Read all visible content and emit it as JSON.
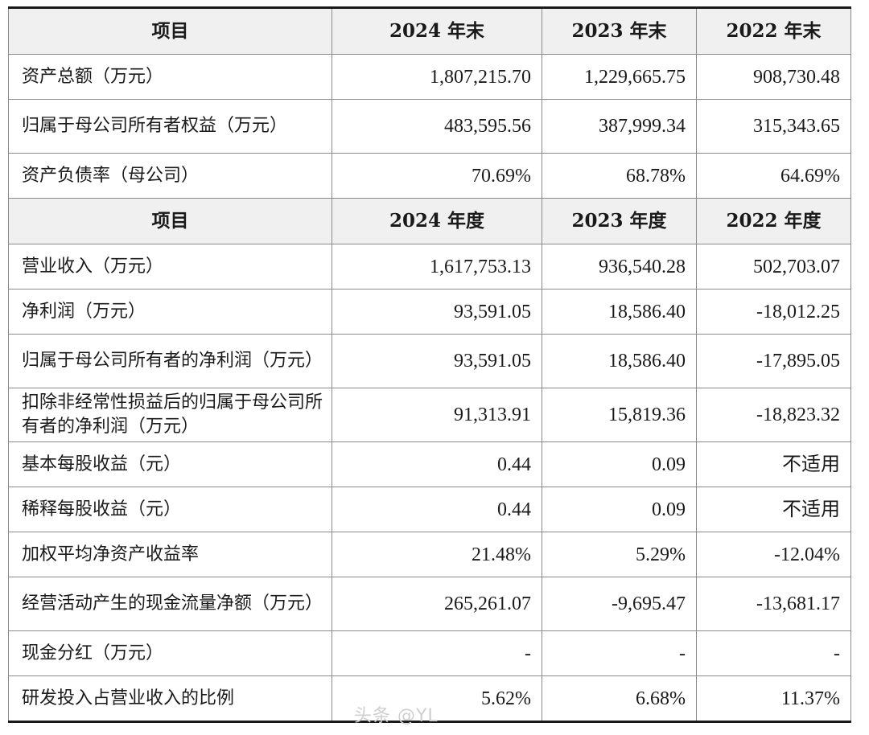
{
  "section1": {
    "headers": [
      "项目",
      "2024 年末",
      "2023 年末",
      "2022 年末"
    ],
    "rows": [
      {
        "label": "资产总额（万元）",
        "v2024": "1,807,215.70",
        "v2023": "1,229,665.75",
        "v2022": "908,730.48"
      },
      {
        "label": "归属于母公司所有者权益（万元）",
        "v2024": "483,595.56",
        "v2023": "387,999.34",
        "v2022": "315,343.65"
      },
      {
        "label": "资产负债率（母公司）",
        "v2024": "70.69%",
        "v2023": "68.78%",
        "v2022": "64.69%"
      }
    ]
  },
  "section2": {
    "headers": [
      "项目",
      "2024 年度",
      "2023 年度",
      "2022 年度"
    ],
    "rows": [
      {
        "label": "营业收入（万元）",
        "v2024": "1,617,753.13",
        "v2023": "936,540.28",
        "v2022": "502,703.07"
      },
      {
        "label": "净利润（万元）",
        "v2024": "93,591.05",
        "v2023": "18,586.40",
        "v2022": "-18,012.25"
      },
      {
        "label": "归属于母公司所有者的净利润（万元）",
        "v2024": "93,591.05",
        "v2023": "18,586.40",
        "v2022": "-17,895.05"
      },
      {
        "label": "扣除非经常性损益后的归属于母公司所有者的净利润（万元）",
        "v2024": "91,313.91",
        "v2023": "15,819.36",
        "v2022": "-18,823.32"
      },
      {
        "label": "基本每股收益（元）",
        "v2024": "0.44",
        "v2023": "0.09",
        "v2022": "不适用"
      },
      {
        "label": "稀释每股收益（元）",
        "v2024": "0.44",
        "v2023": "0.09",
        "v2022": "不适用"
      },
      {
        "label": "加权平均净资产收益率",
        "v2024": "21.48%",
        "v2023": "5.29%",
        "v2022": "-12.04%"
      },
      {
        "label": "经营活动产生的现金流量净额（万元）",
        "v2024": "265,261.07",
        "v2023": "-9,695.47",
        "v2022": "-13,681.17"
      },
      {
        "label": "现金分红（万元）",
        "v2024": "-",
        "v2023": "-",
        "v2022": "-"
      },
      {
        "label": "研发投入占营业收入的比例",
        "v2024": "5.62%",
        "v2023": "6.68%",
        "v2022": "11.37%"
      }
    ]
  },
  "watermark": "头条 @YL"
}
